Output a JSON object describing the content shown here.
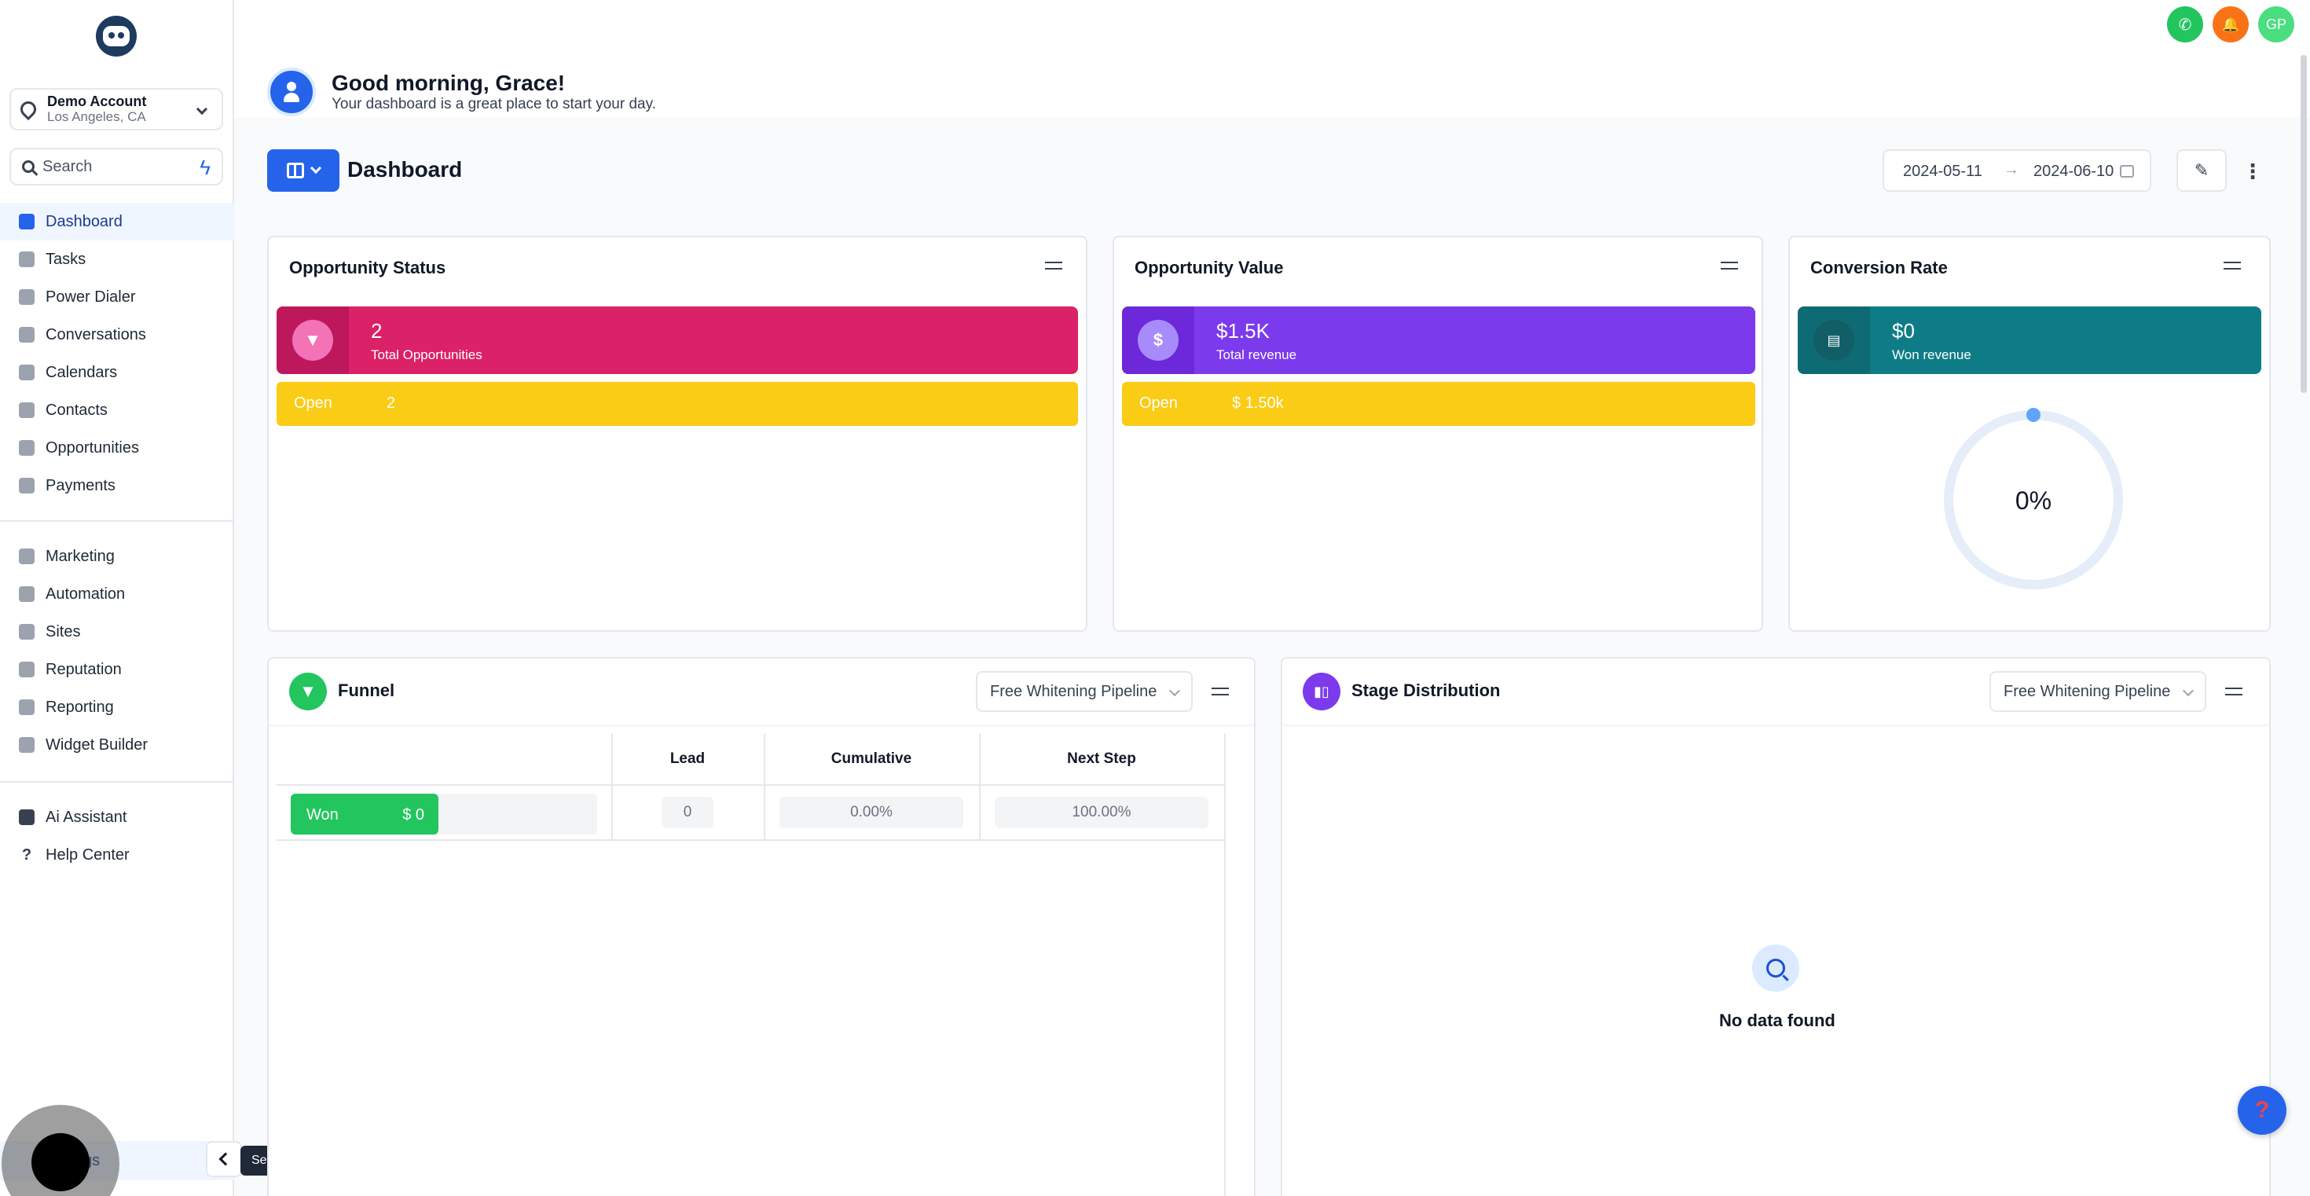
{
  "colors": {
    "accent": "#2563eb",
    "pink": "#db2167",
    "purple": "#7c3aed",
    "teal": "#0e7c86",
    "yellow": "#facc15",
    "green": "#22c55e"
  },
  "sidebar": {
    "account": {
      "name": "Demo Account",
      "location": "Los Angeles, CA"
    },
    "search_placeholder": "Search",
    "items": [
      {
        "label": "Dashboard",
        "icon": "dashboard-icon"
      },
      {
        "label": "Tasks",
        "icon": "check-icon"
      },
      {
        "label": "Power Dialer",
        "icon": "bolt-icon"
      },
      {
        "label": "Conversations",
        "icon": "chat-icon"
      },
      {
        "label": "Calendars",
        "icon": "calendar-icon"
      },
      {
        "label": "Contacts",
        "icon": "person-icon"
      },
      {
        "label": "Opportunities",
        "icon": "funnel-icon"
      },
      {
        "label": "Payments",
        "icon": "card-icon"
      }
    ],
    "items2": [
      {
        "label": "Marketing",
        "icon": "megaphone-icon"
      },
      {
        "label": "Automation",
        "icon": "play-icon"
      },
      {
        "label": "Sites",
        "icon": "globe-icon"
      },
      {
        "label": "Reputation",
        "icon": "star-icon"
      },
      {
        "label": "Reporting",
        "icon": "chart-icon"
      },
      {
        "label": "Widget Builder",
        "icon": "widget-icon"
      }
    ],
    "items3": [
      {
        "label": "Ai Assistant",
        "icon": "robot-icon"
      },
      {
        "label": "Help Center",
        "icon": "question-icon"
      }
    ],
    "settings_label": "Settings",
    "settings_visible": "gs",
    "tooltip": "Settings"
  },
  "topbar": {
    "avatar_initials": "GP",
    "phone_glyph": "✆",
    "bell_glyph": "🔔"
  },
  "greeting": {
    "title": "Good morning, Grace!",
    "subtitle": "Your dashboard is a great place to start your day."
  },
  "dashboard": {
    "title": "Dashboard",
    "date_start": "2024-05-11",
    "date_end": "2024-06-10",
    "arrow": "→"
  },
  "opportunity_status": {
    "title": "Opportunity Status",
    "value": "2",
    "label": "Total Opportunities",
    "open_label": "Open",
    "open_value": "2"
  },
  "opportunity_value": {
    "title": "Opportunity Value",
    "value": "$1.5K",
    "label": "Total revenue",
    "open_label": "Open",
    "open_value": "$ 1.50k"
  },
  "conversion_rate": {
    "title": "Conversion Rate",
    "value": "$0",
    "label": "Won revenue",
    "percent_text": "0%",
    "percent": 0
  },
  "funnel": {
    "title": "Funnel",
    "pipeline": "Free Whitening Pipeline",
    "columns": [
      "Lead",
      "Cumulative",
      "Next Step"
    ],
    "row": {
      "stage": "Won",
      "amount": "$ 0",
      "lead": "0",
      "cumulative": "0.00%",
      "next_step": "100.00%"
    }
  },
  "stage_distribution": {
    "title": "Stage Distribution",
    "pipeline": "Free Whitening Pipeline",
    "empty_text": "No data found"
  },
  "help_glyph": "?"
}
